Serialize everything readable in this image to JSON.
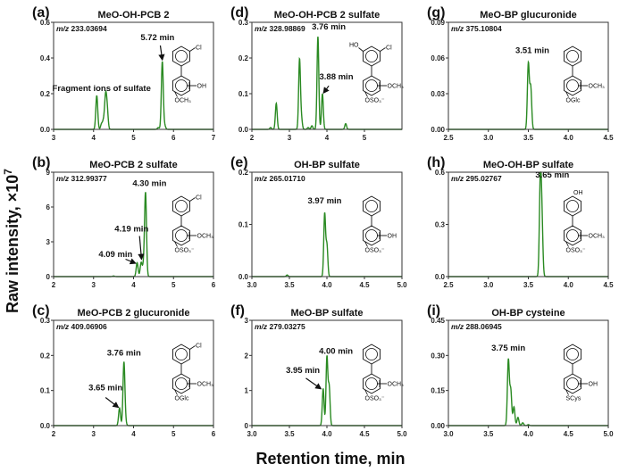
{
  "figure": {
    "ylabel": "Raw intensity, ×10",
    "ylabel_exp": "7",
    "xlabel": "Retention time, min",
    "line_color": "#2a8a22"
  },
  "chart_data": [
    {
      "type": "line",
      "panel": "(a)",
      "title": "MeO-OH-PCB 2",
      "mz_prefix": "m/z",
      "mz": "233.03694",
      "xlim": [
        3,
        7
      ],
      "ylim": [
        0,
        0.6
      ],
      "xticks": [
        "3",
        "4",
        "5",
        "6",
        "7"
      ],
      "yticks": [
        "0.0",
        "0.2",
        "0.4",
        "0.6"
      ],
      "peaks": [
        {
          "rt": 4.08,
          "intensity": 0.19
        },
        {
          "rt": 4.2,
          "intensity": 0.03
        },
        {
          "rt": 4.25,
          "intensity": 0.045
        },
        {
          "rt": 4.3,
          "intensity": 0.175
        },
        {
          "rt": 4.34,
          "intensity": 0.11
        },
        {
          "rt": 5.62,
          "intensity": 0.01
        },
        {
          "rt": 5.72,
          "intensity": 0.38
        },
        {
          "rt": 5.78,
          "intensity": 0.02
        }
      ],
      "annotations": [
        {
          "text": "5.72 min",
          "x": 5.6,
          "y": 0.5,
          "arrow_from": [
            5.67,
            0.47
          ],
          "arrow_to": [
            5.72,
            0.39
          ]
        },
        {
          "text": "Fragment ions of sulfate",
          "x": 4.2,
          "y": 0.215
        }
      ],
      "structure": {
        "top_right": "Cl",
        "ring_right": "OH",
        "ring_bottom": "OCH₃"
      }
    },
    {
      "type": "line",
      "panel": "(b)",
      "title": "MeO-PCB 2 sulfate",
      "mz_prefix": "m/z",
      "mz": "312.99377",
      "xlim": [
        2,
        6
      ],
      "ylim": [
        0,
        9
      ],
      "xticks": [
        "2",
        "3",
        "4",
        "5",
        "6"
      ],
      "yticks": [
        "0",
        "3",
        "6",
        "9"
      ],
      "peaks": [
        {
          "rt": 3.5,
          "intensity": 0.05
        },
        {
          "rt": 4.09,
          "intensity": 1.2
        },
        {
          "rt": 4.19,
          "intensity": 1.2
        },
        {
          "rt": 4.25,
          "intensity": 0.9
        },
        {
          "rt": 4.3,
          "intensity": 7.2
        }
      ],
      "annotations": [
        {
          "text": "4.30 min",
          "x": 4.4,
          "y": 7.8
        },
        {
          "text": "4.19 min",
          "x": 3.95,
          "y": 3.9,
          "arrow_from": [
            4.15,
            3.5
          ],
          "arrow_to": [
            4.2,
            1.5
          ]
        },
        {
          "text": "4.09 min",
          "x": 3.55,
          "y": 1.7,
          "arrow_from": [
            3.8,
            1.5
          ],
          "arrow_to": [
            4.05,
            1.15
          ]
        }
      ],
      "structure": {
        "top_right": "Cl",
        "ring_right": "OCH₃",
        "ring_bottom": "OSO₃⁻"
      }
    },
    {
      "type": "line",
      "panel": "(c)",
      "title": "MeO-PCB 2 glucuronide",
      "mz_prefix": "m/z",
      "mz": "409.06906",
      "xlim": [
        2,
        6
      ],
      "ylim": [
        0,
        0.3
      ],
      "xticks": [
        "2",
        "3",
        "4",
        "5",
        "6"
      ],
      "yticks": [
        "0.0",
        "0.1",
        "0.2",
        "0.3"
      ],
      "peaks": [
        {
          "rt": 3.65,
          "intensity": 0.05
        },
        {
          "rt": 3.76,
          "intensity": 0.18
        },
        {
          "rt": 3.8,
          "intensity": 0.008
        }
      ],
      "annotations": [
        {
          "text": "3.76 min",
          "x": 3.76,
          "y": 0.2
        },
        {
          "text": "3.65 min",
          "x": 3.3,
          "y": 0.1,
          "arrow_from": [
            3.3,
            0.08
          ],
          "arrow_to": [
            3.62,
            0.052
          ]
        }
      ],
      "structure": {
        "top_right": "Cl",
        "ring_right": "OCH₃",
        "ring_bottom": "OGlc"
      }
    },
    {
      "type": "line",
      "panel": "(d)",
      "title": "MeO-OH-PCB 2 sulfate",
      "mz_prefix": "m/z",
      "mz": "328.98869",
      "xlim": [
        2,
        6
      ],
      "ylim": [
        0,
        0.3
      ],
      "xticks": [
        "2",
        "3",
        "4",
        "5"
      ],
      "yticks": [
        "0.0",
        "0.1",
        "0.2",
        "0.3"
      ],
      "peaks": [
        {
          "rt": 2.5,
          "intensity": 0.005
        },
        {
          "rt": 2.65,
          "intensity": 0.073
        },
        {
          "rt": 3.27,
          "intensity": 0.195
        },
        {
          "rt": 3.32,
          "intensity": 0.03
        },
        {
          "rt": 3.5,
          "intensity": 0.005
        },
        {
          "rt": 3.6,
          "intensity": 0.01
        },
        {
          "rt": 3.76,
          "intensity": 0.26
        },
        {
          "rt": 3.88,
          "intensity": 0.1
        },
        {
          "rt": 4.5,
          "intensity": 0.016
        }
      ],
      "annotations": [
        {
          "text": "3.76 min",
          "x": 4.05,
          "y": 0.28
        },
        {
          "text": "3.88 min",
          "x": 4.25,
          "y": 0.14,
          "arrow_from": [
            4.05,
            0.122
          ],
          "arrow_to": [
            3.91,
            0.102
          ]
        }
      ],
      "structure": {
        "top_left": "HO",
        "top_right": "Cl",
        "ring_right": "OCH₃",
        "ring_bottom": "OSO₃⁻"
      }
    },
    {
      "type": "line",
      "panel": "(e)",
      "title": "OH-BP sulfate",
      "mz_prefix": "m/z",
      "mz": "265.01710",
      "xlim": [
        3,
        5
      ],
      "ylim": [
        0,
        0.2
      ],
      "xticks": [
        "3.0",
        "3.5",
        "4.0",
        "4.5",
        "5.0"
      ],
      "yticks": [
        "0.0",
        "0.1",
        "0.2"
      ],
      "peaks": [
        {
          "rt": 3.47,
          "intensity": 0.003
        },
        {
          "rt": 3.97,
          "intensity": 0.12
        },
        {
          "rt": 4.0,
          "intensity": 0.06
        }
      ],
      "annotations": [
        {
          "text": "3.97 min",
          "x": 3.97,
          "y": 0.14
        }
      ],
      "structure": {
        "ring_right": "OH",
        "ring_bottom": "OSO₃⁻"
      }
    },
    {
      "type": "line",
      "panel": "(f)",
      "title": "MeO-BP sulfate",
      "mz_prefix": "m/z",
      "mz": "279.03275",
      "xlim": [
        3,
        5
      ],
      "ylim": [
        0,
        3
      ],
      "xticks": [
        "3.0",
        "3.5",
        "4.0",
        "4.5",
        "5.0"
      ],
      "yticks": [
        "0",
        "1",
        "2",
        "3"
      ],
      "peaks": [
        {
          "rt": 3.95,
          "intensity": 1.05
        },
        {
          "rt": 4.0,
          "intensity": 1.95
        },
        {
          "rt": 4.03,
          "intensity": 1.1
        }
      ],
      "annotations": [
        {
          "text": "4.00 min",
          "x": 4.12,
          "y": 2.05
        },
        {
          "text": "3.95 min",
          "x": 3.68,
          "y": 1.5,
          "arrow_from": [
            3.72,
            1.35
          ],
          "arrow_to": [
            3.92,
            1.05
          ]
        }
      ],
      "structure": {
        "ring_right": "OCH₃",
        "ring_bottom": "OSO₃⁻"
      }
    },
    {
      "type": "line",
      "panel": "(g)",
      "title": "MeO-BP glucuronide",
      "mz_prefix": "m/z",
      "mz": "375.10804",
      "xlim": [
        2.5,
        4.5
      ],
      "ylim": [
        0,
        0.09
      ],
      "xticks": [
        "2.5",
        "3.0",
        "3.5",
        "4.0",
        "4.5"
      ],
      "yticks": [
        "0.00",
        "0.03",
        "0.06",
        "0.09"
      ],
      "peaks": [
        {
          "rt": 3.5,
          "intensity": 0.055
        },
        {
          "rt": 3.53,
          "intensity": 0.035
        }
      ],
      "annotations": [
        {
          "text": "3.51 min",
          "x": 3.55,
          "y": 0.064
        }
      ],
      "structure": {
        "ring_right": "OCH₃",
        "ring_bottom": "OGlc"
      }
    },
    {
      "type": "line",
      "panel": "(h)",
      "title": "MeO-OH-BP sulfate",
      "mz_prefix": "m/z",
      "mz": "295.02767",
      "xlim": [
        2.5,
        4.5
      ],
      "ylim": [
        0,
        0.6
      ],
      "xticks": [
        "2.5",
        "3.0",
        "3.5",
        "4.0",
        "4.5"
      ],
      "yticks": [
        "0.0",
        "0.3",
        "0.6"
      ],
      "peaks": [
        {
          "rt": 3.65,
          "intensity": 0.54
        },
        {
          "rt": 3.67,
          "intensity": 0.3
        }
      ],
      "annotations": [
        {
          "text": "3.65 min",
          "x": 3.8,
          "y": 0.57
        }
      ],
      "structure": {
        "top_top": "OH",
        "ring_right": "OCH₃",
        "ring_bottom": "OSO₃⁻"
      }
    },
    {
      "type": "line",
      "panel": "(i)",
      "title": "OH-BP cysteine",
      "mz_prefix": "m/z",
      "mz": "288.06945",
      "xlim": [
        3,
        5
      ],
      "ylim": [
        0,
        0.45
      ],
      "xticks": [
        "3.0",
        "3.5",
        "4.0",
        "4.5",
        "5.0"
      ],
      "yticks": [
        "0.00",
        "0.15",
        "0.30",
        "0.45"
      ],
      "peaks": [
        {
          "rt": 3.75,
          "intensity": 0.28
        },
        {
          "rt": 3.78,
          "intensity": 0.15
        },
        {
          "rt": 3.82,
          "intensity": 0.08
        },
        {
          "rt": 3.87,
          "intensity": 0.035
        },
        {
          "rt": 3.93,
          "intensity": 0.012
        },
        {
          "rt": 4.0,
          "intensity": 0.004
        }
      ],
      "annotations": [
        {
          "text": "3.75 min",
          "x": 3.75,
          "y": 0.32
        }
      ],
      "structure": {
        "ring_right": "OH",
        "ring_bottom": "SCys"
      }
    }
  ]
}
